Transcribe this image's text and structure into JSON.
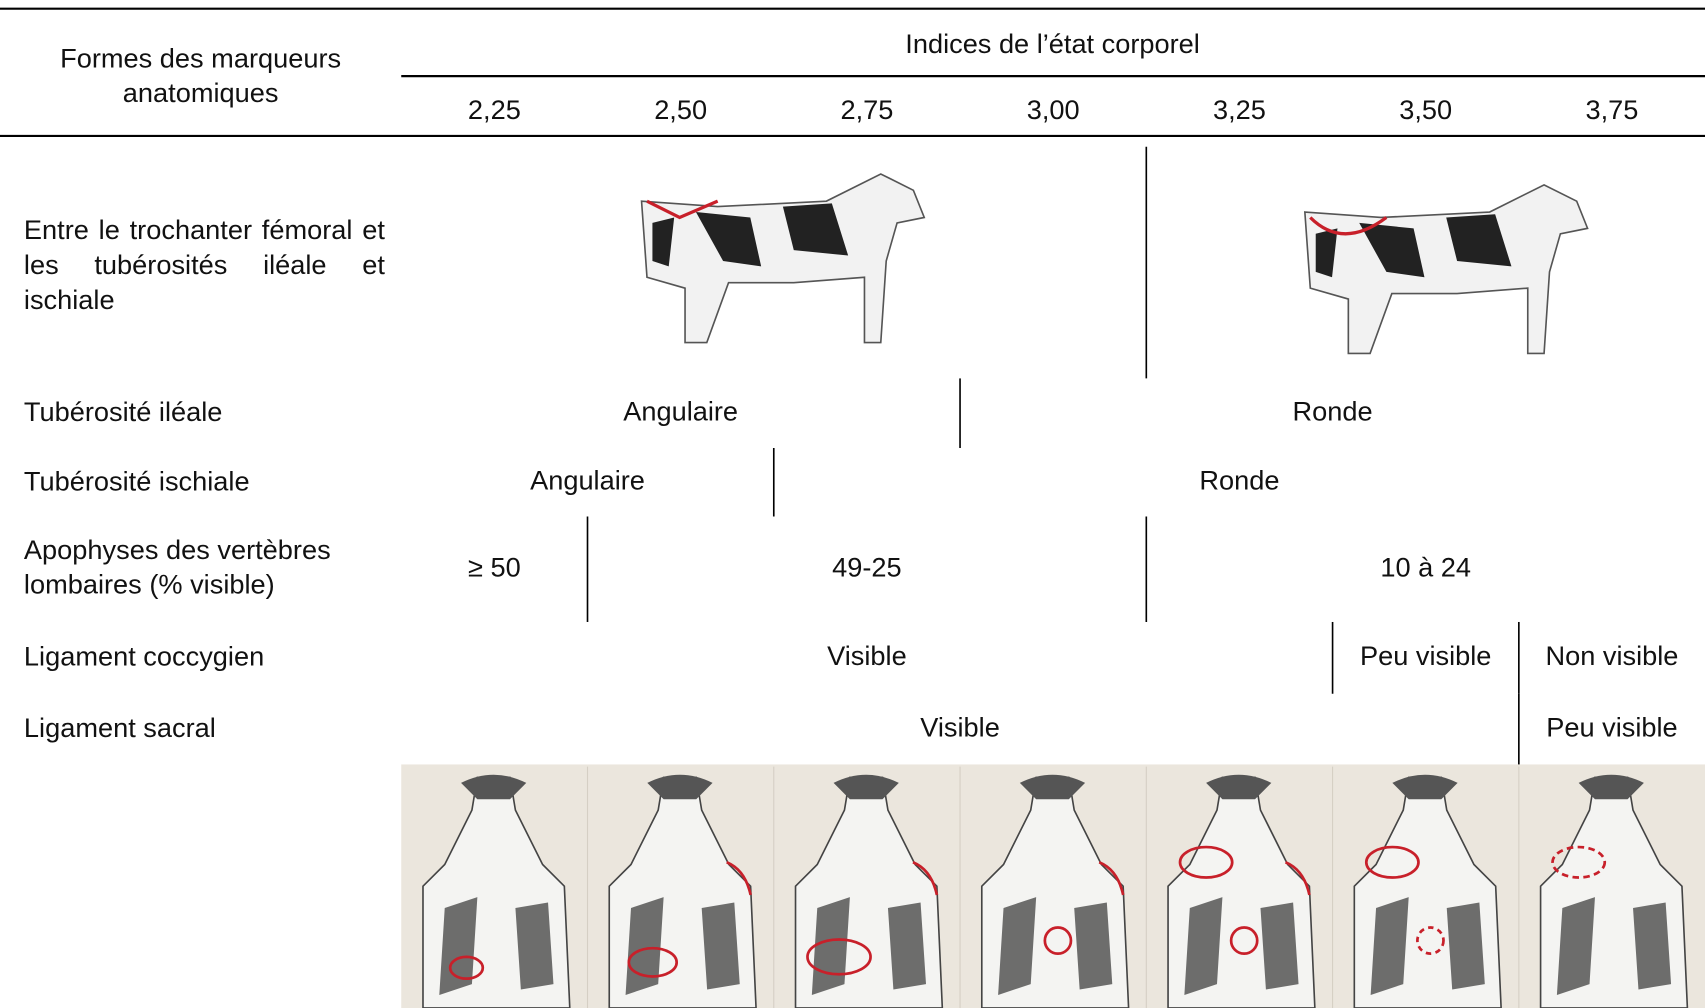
{
  "header": {
    "row_label": "Formes des marqueurs anatomiques",
    "group_title": "Indices de l’état corporel",
    "columns": [
      "2,25",
      "2,50",
      "2,75",
      "3,00",
      "3,25",
      "3,50",
      "3,75"
    ]
  },
  "rows": [
    {
      "label": "Entre le trochanter fémoral et les tubérosités iléale et ischiale",
      "cells": []
    },
    {
      "label": "Tubérosité iléale",
      "cells": [
        "Angulaire",
        "Ronde"
      ]
    },
    {
      "label": "Tubérosité ischiale",
      "cells": [
        "Angulaire",
        "Ronde"
      ]
    },
    {
      "label": "Apophyses des vertèbres lombaires (% visible)",
      "cells": [
        "≥ 50",
        "49-25",
        "10 à 24"
      ]
    },
    {
      "label": "Ligament coccygien",
      "cells": [
        "Visible",
        "Peu visible",
        "Non visible"
      ]
    },
    {
      "label": "Ligament sacral",
      "cells": [
        "Visible",
        "Peu visible"
      ]
    }
  ]
}
